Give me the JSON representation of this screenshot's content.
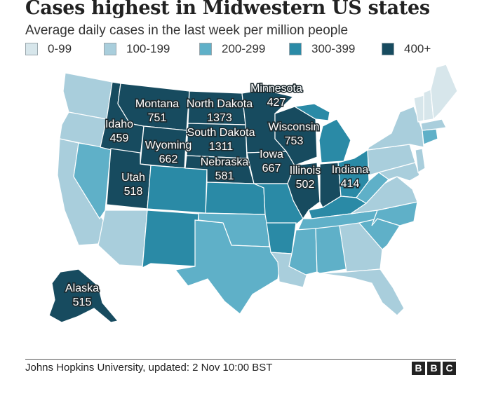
{
  "title": "Cases highest in Midwestern US states",
  "subtitle": "Average daily cases in the last week per million people",
  "legend": [
    {
      "label": "0-99",
      "color": "#d7e6eb"
    },
    {
      "label": "100-199",
      "color": "#a9cedc"
    },
    {
      "label": "200-299",
      "color": "#5fb0c8"
    },
    {
      "label": "300-399",
      "color": "#2a8aa6"
    },
    {
      "label": "400+",
      "color": "#174b5f"
    }
  ],
  "states": [
    {
      "name": "Minnesota",
      "value": "427"
    },
    {
      "name": "Montana",
      "value": "751"
    },
    {
      "name": "North Dakota",
      "value": "1373"
    },
    {
      "name": "Idaho",
      "value": "459"
    },
    {
      "name": "South Dakota",
      "value": "1311"
    },
    {
      "name": "Wisconsin",
      "value": "753"
    },
    {
      "name": "Wyoming",
      "value": "662"
    },
    {
      "name": "Nebraska",
      "value": "581"
    },
    {
      "name": "Iowa",
      "value": "667"
    },
    {
      "name": "Illinois",
      "value": "502"
    },
    {
      "name": "Indiana",
      "value": "414"
    },
    {
      "name": "Utah",
      "value": "518"
    },
    {
      "name": "Alaska",
      "value": "515"
    }
  ],
  "source": "Johns Hopkins University, updated: 2 Nov 10:00 BST",
  "logo": [
    "B",
    "B",
    "C"
  ]
}
